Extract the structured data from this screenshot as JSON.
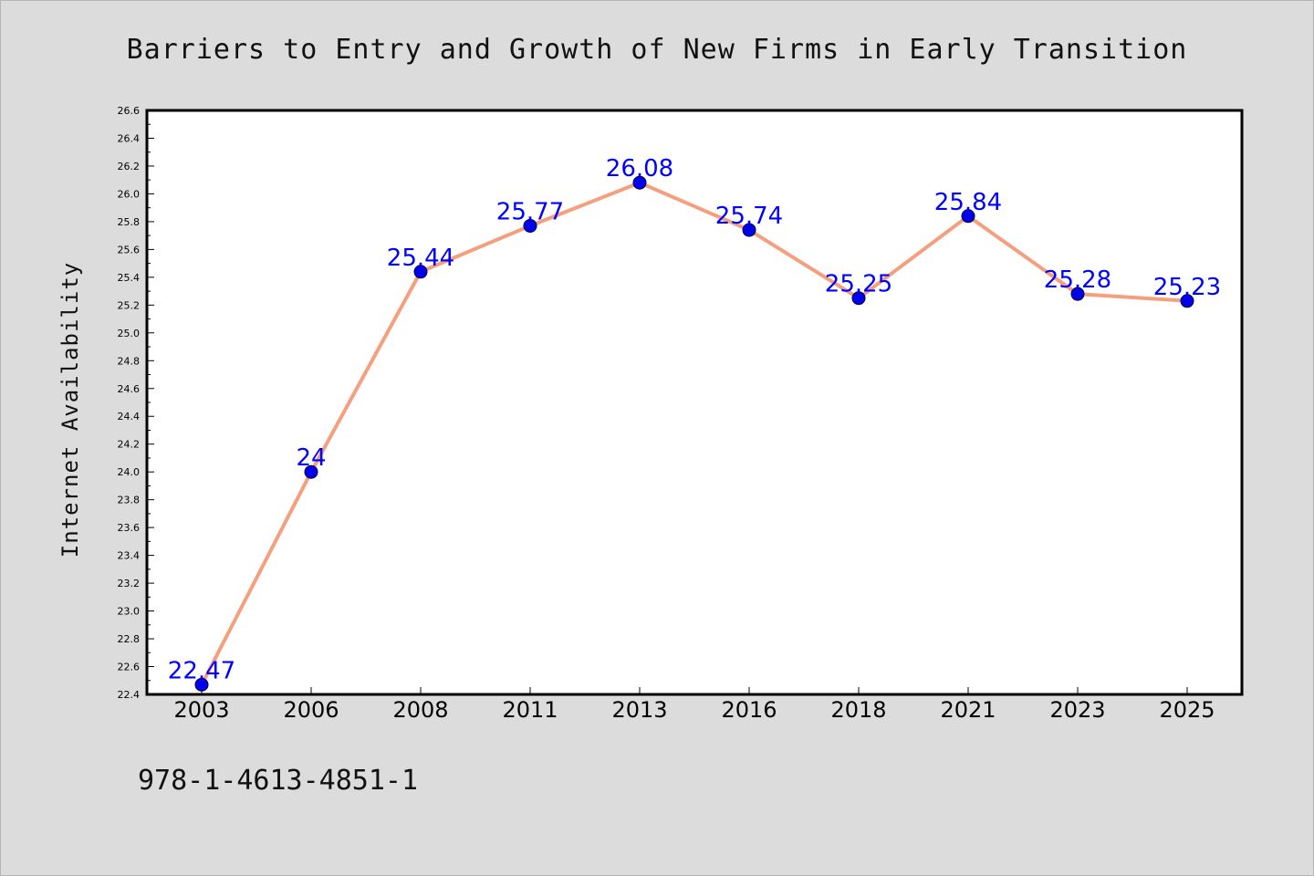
{
  "chart_data": {
    "type": "line",
    "title": "Barriers to Entry and Growth of New Firms in Early Transition",
    "xlabel": "",
    "ylabel": "Internet Availability",
    "categories": [
      "2003",
      "2006",
      "2008",
      "2011",
      "2013",
      "2016",
      "2018",
      "2021",
      "2023",
      "2025"
    ],
    "series": [
      {
        "values": [
          22.47,
          24,
          25.44,
          25.77,
          26.08,
          25.74,
          25.25,
          25.84,
          25.28,
          25.23
        ],
        "labels": [
          "22.47",
          "24",
          "25.44",
          "25.77",
          "26.08",
          "25.74",
          "25.25",
          "25.84",
          "25.28",
          "25.23"
        ]
      }
    ],
    "ylim": [
      22.4,
      26.6
    ],
    "ytick_step": 0.2,
    "grid": false,
    "line_color": "#f4a07f",
    "marker_color": "#0000ee",
    "label_color": "#0000ff"
  },
  "footer": {
    "isbn": "978-1-4613-4851-1"
  }
}
